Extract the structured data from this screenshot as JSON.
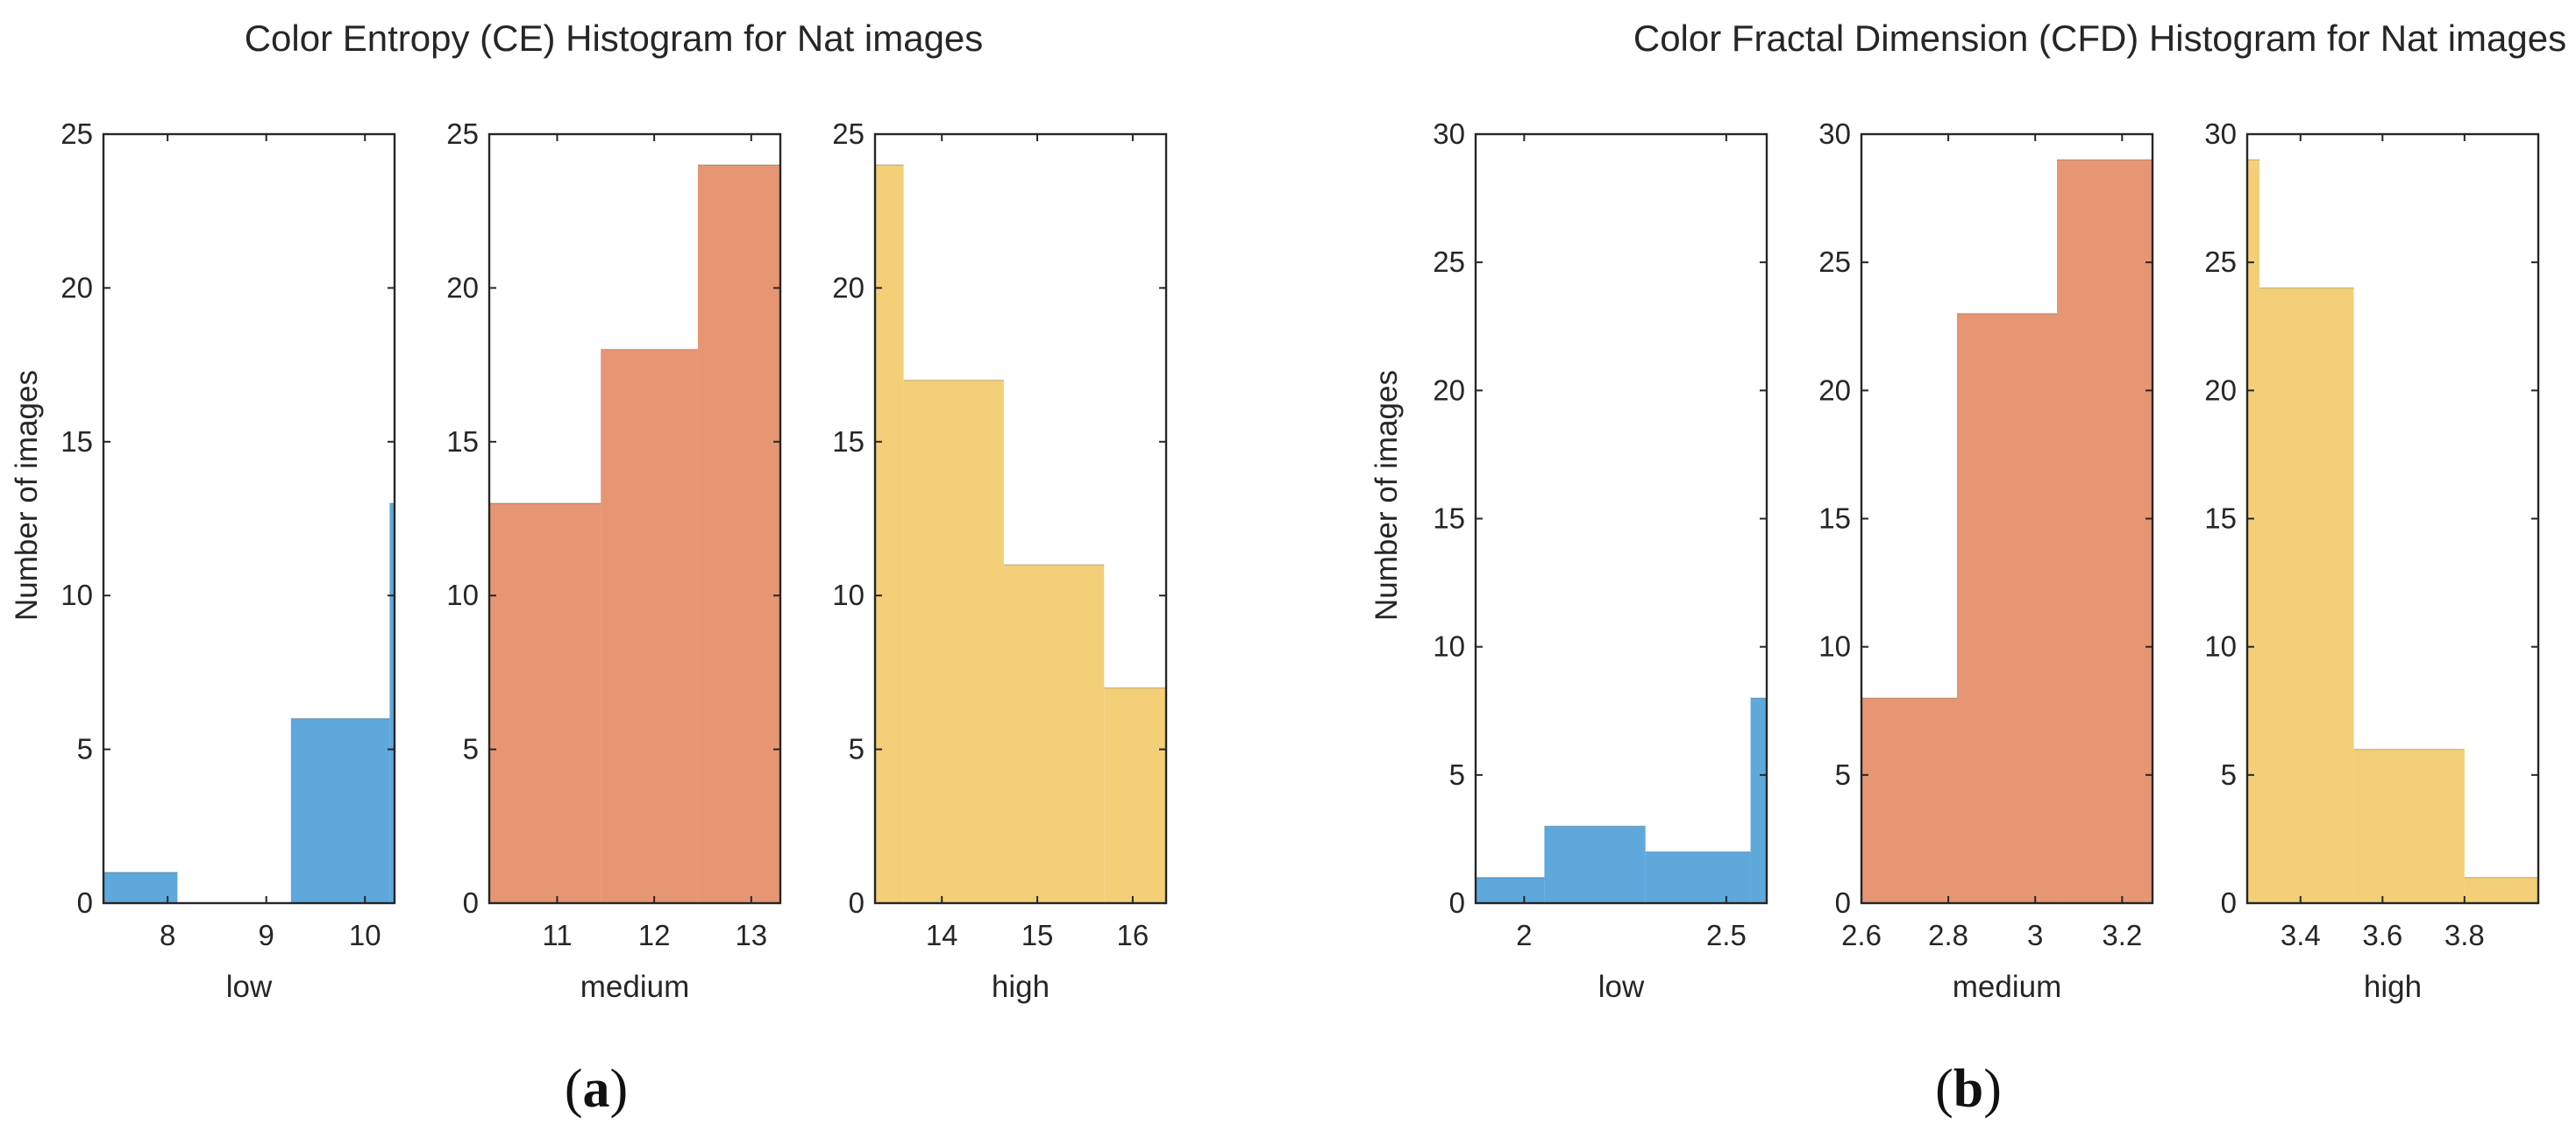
{
  "chart_data": [
    {
      "type": "bar",
      "title": "Color Entropy (CE) Histogram for Nat images",
      "ylabel": "Number of images",
      "caption": "a",
      "colors": {
        "low": "#5ea8dc",
        "medium": "#e69673",
        "high": "#f3d077"
      },
      "panels": [
        {
          "xlabel": "low",
          "color_key": "low",
          "xlim": [
            7.35,
            10.3
          ],
          "ylim": [
            0,
            25
          ],
          "xticks": [
            8,
            9,
            10
          ],
          "xtick_labels": [
            "8",
            "9",
            "10"
          ],
          "yticks": [
            0,
            5,
            10,
            15,
            20,
            25
          ],
          "ytick_labels": [
            "0",
            "5",
            "10",
            "15",
            "20",
            "25"
          ],
          "bins": [
            {
              "x0": 7.35,
              "x1": 8.1,
              "count": 1
            },
            {
              "x0": 8.1,
              "x1": 9.25,
              "count": 0
            },
            {
              "x0": 9.25,
              "x1": 10.25,
              "count": 6
            },
            {
              "x0": 10.25,
              "x1": 10.3,
              "count": 13
            }
          ]
        },
        {
          "xlabel": "medium",
          "color_key": "medium",
          "xlim": [
            10.3,
            13.3
          ],
          "ylim": [
            0,
            25
          ],
          "xticks": [
            11,
            12,
            13
          ],
          "xtick_labels": [
            "11",
            "12",
            "13"
          ],
          "yticks": [
            0,
            5,
            10,
            15,
            20,
            25
          ],
          "ytick_labels": [
            "0",
            "5",
            "10",
            "15",
            "20",
            "25"
          ],
          "bins": [
            {
              "x0": 10.3,
              "x1": 11.45,
              "count": 13
            },
            {
              "x0": 11.45,
              "x1": 12.45,
              "count": 18
            },
            {
              "x0": 12.45,
              "x1": 13.3,
              "count": 24
            }
          ]
        },
        {
          "xlabel": "high",
          "color_key": "high",
          "xlim": [
            13.3,
            16.35
          ],
          "ylim": [
            0,
            25
          ],
          "xticks": [
            14,
            15,
            16
          ],
          "xtick_labels": [
            "14",
            "15",
            "16"
          ],
          "yticks": [
            0,
            5,
            10,
            15,
            20,
            25
          ],
          "ytick_labels": [
            "0",
            "5",
            "10",
            "15",
            "20",
            "25"
          ],
          "bins": [
            {
              "x0": 13.3,
              "x1": 13.6,
              "count": 24
            },
            {
              "x0": 13.6,
              "x1": 14.65,
              "count": 17
            },
            {
              "x0": 14.65,
              "x1": 15.7,
              "count": 11
            },
            {
              "x0": 15.7,
              "x1": 16.35,
              "count": 7
            }
          ]
        }
      ]
    },
    {
      "type": "bar",
      "title": "Color Fractal Dimension (CFD) Histogram for Nat images",
      "ylabel": "Number of images",
      "caption": "b",
      "colors": {
        "low": "#5ea8dc",
        "medium": "#e69673",
        "high": "#f3d077"
      },
      "panels": [
        {
          "xlabel": "low",
          "color_key": "low",
          "xlim": [
            1.88,
            2.6
          ],
          "ylim": [
            0,
            30
          ],
          "xticks": [
            2,
            2.5
          ],
          "xtick_labels": [
            "2",
            "2.5"
          ],
          "yticks": [
            0,
            5,
            10,
            15,
            20,
            25,
            30
          ],
          "ytick_labels": [
            "0",
            "5",
            "10",
            "15",
            "20",
            "25",
            "30"
          ],
          "bins": [
            {
              "x0": 1.88,
              "x1": 2.05,
              "count": 1
            },
            {
              "x0": 2.05,
              "x1": 2.3,
              "count": 3
            },
            {
              "x0": 2.3,
              "x1": 2.56,
              "count": 2
            },
            {
              "x0": 2.56,
              "x1": 2.6,
              "count": 8
            }
          ]
        },
        {
          "xlabel": "medium",
          "color_key": "medium",
          "xlim": [
            2.6,
            3.27
          ],
          "ylim": [
            0,
            30
          ],
          "xticks": [
            2.6,
            2.8,
            3,
            3.2
          ],
          "xtick_labels": [
            "2.6",
            "2.8",
            "3",
            "3.2"
          ],
          "yticks": [
            0,
            5,
            10,
            15,
            20,
            25,
            30
          ],
          "ytick_labels": [
            "0",
            "5",
            "10",
            "15",
            "20",
            "25",
            "30"
          ],
          "bins": [
            {
              "x0": 2.6,
              "x1": 2.82,
              "count": 8
            },
            {
              "x0": 2.82,
              "x1": 3.05,
              "count": 23
            },
            {
              "x0": 3.05,
              "x1": 3.27,
              "count": 29
            }
          ]
        },
        {
          "xlabel": "high",
          "color_key": "high",
          "xlim": [
            3.27,
            3.98
          ],
          "ylim": [
            0,
            30
          ],
          "xticks": [
            3.4,
            3.6,
            3.8
          ],
          "xtick_labels": [
            "3.4",
            "3.6",
            "3.8"
          ],
          "yticks": [
            0,
            5,
            10,
            15,
            20,
            25,
            30
          ],
          "ytick_labels": [
            "0",
            "5",
            "10",
            "15",
            "20",
            "25",
            "30"
          ],
          "bins": [
            {
              "x0": 3.27,
              "x1": 3.3,
              "count": 29
            },
            {
              "x0": 3.3,
              "x1": 3.53,
              "count": 24
            },
            {
              "x0": 3.53,
              "x1": 3.8,
              "count": 6
            },
            {
              "x0": 3.8,
              "x1": 3.98,
              "count": 1
            }
          ]
        }
      ]
    }
  ]
}
